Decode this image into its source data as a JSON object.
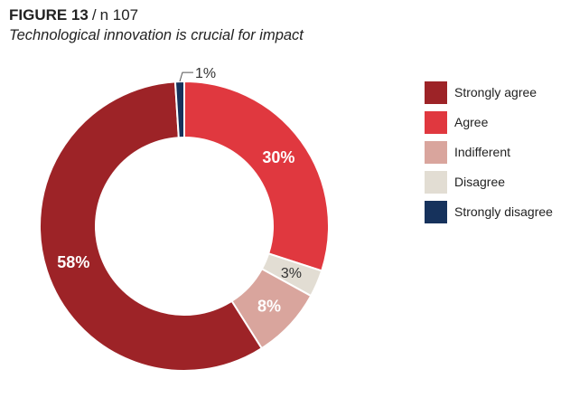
{
  "header": {
    "figure_label": "FIGURE 13",
    "separator": "/",
    "sample": "n 107",
    "subtitle": "Technological innovation is crucial for impact"
  },
  "chart_data": {
    "type": "pie",
    "variant": "donut",
    "title": "Technological innovation is crucial for impact",
    "categories": [
      "Strongly agree",
      "Agree",
      "Indifferent",
      "Disagree",
      "Strongly disagree"
    ],
    "values": [
      58,
      30,
      8,
      3,
      1
    ],
    "data_labels": [
      "58%",
      "30%",
      "8%",
      "3%",
      "1%"
    ],
    "colors": [
      "#9d2327",
      "#e0383f",
      "#d9a59d",
      "#e2ddd3",
      "#16325c"
    ],
    "label_colors": [
      "#ffffff",
      "#ffffff",
      "#ffffff",
      "#333333",
      "#333333"
    ],
    "legend_position": "right",
    "start_order_from_top_clockwise": [
      "Agree",
      "Disagree",
      "Indifferent",
      "Strongly agree",
      "Strongly disagree"
    ]
  }
}
